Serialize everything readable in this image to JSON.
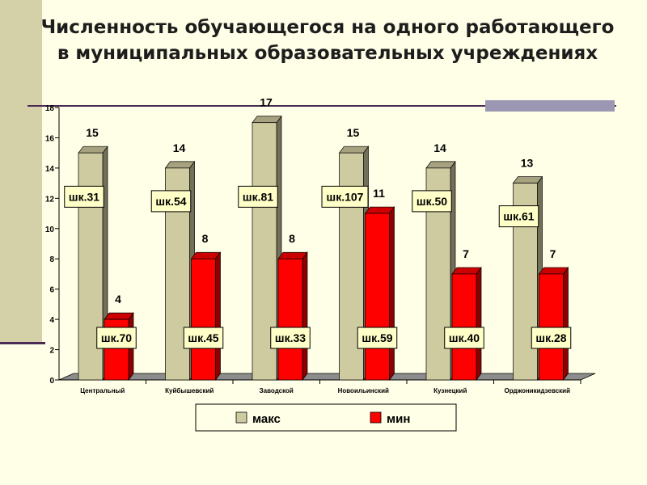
{
  "title_line1": "Численность обучающегося на одного работающего",
  "title_line2": "в муниципальных образовательных учреждениях",
  "chart_data": {
    "type": "bar",
    "categories": [
      "Центральный",
      "Куйбышевский",
      "Заводской",
      "Новоильинский",
      "Кузнецкий",
      "Орджоникидзевский"
    ],
    "series": [
      {
        "name": "макс",
        "values": [
          15,
          14,
          17,
          15,
          14,
          13
        ],
        "color": "#cfcba0",
        "labels": [
          "шк.31",
          "шк.54",
          "шк.81",
          "шк.107",
          "шк.50",
          "шк.61"
        ]
      },
      {
        "name": "мин",
        "values": [
          4,
          8,
          8,
          11,
          7,
          7
        ],
        "color": "#ff0000",
        "labels": [
          "шк.70",
          "шк.45",
          "шк.33",
          "шк.59",
          "шк.40",
          "шк.28"
        ]
      }
    ],
    "ylim": [
      0,
      18
    ],
    "yticks": [
      0,
      2,
      4,
      6,
      8,
      10,
      12,
      14,
      16,
      18
    ],
    "legend_position": "bottom"
  }
}
